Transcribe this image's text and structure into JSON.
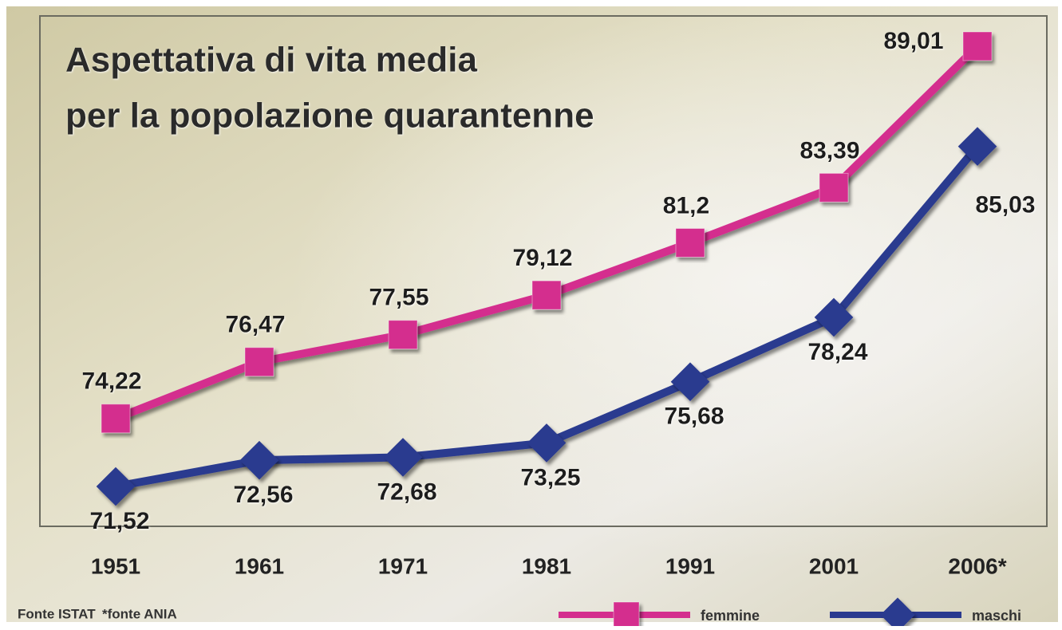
{
  "chart_data": {
    "type": "line",
    "title": [
      "Aspettativa di vita media",
      "per la popolazione quarantenne"
    ],
    "categories": [
      "1951",
      "1961",
      "1971",
      "1981",
      "1991",
      "2001",
      "2006*"
    ],
    "series": [
      {
        "name": "femmine",
        "color": "#d42e8e",
        "marker": "square",
        "values": [
          74.22,
          76.47,
          77.55,
          79.12,
          81.2,
          83.39,
          89.01
        ],
        "value_labels": [
          "74,22",
          "76,47",
          "77,55",
          "79,12",
          "81,2",
          "83,39",
          "89,01"
        ]
      },
      {
        "name": "maschi",
        "color": "#2a3a8f",
        "marker": "diamond",
        "values": [
          71.52,
          72.56,
          72.68,
          73.25,
          75.68,
          78.24,
          85.03
        ],
        "value_labels": [
          "71,52",
          "72,56",
          "72,68",
          "73,25",
          "75,68",
          "78,24",
          "85,03"
        ]
      }
    ],
    "source": "Fonte ISTAT",
    "note": "*fonte ANIA"
  }
}
